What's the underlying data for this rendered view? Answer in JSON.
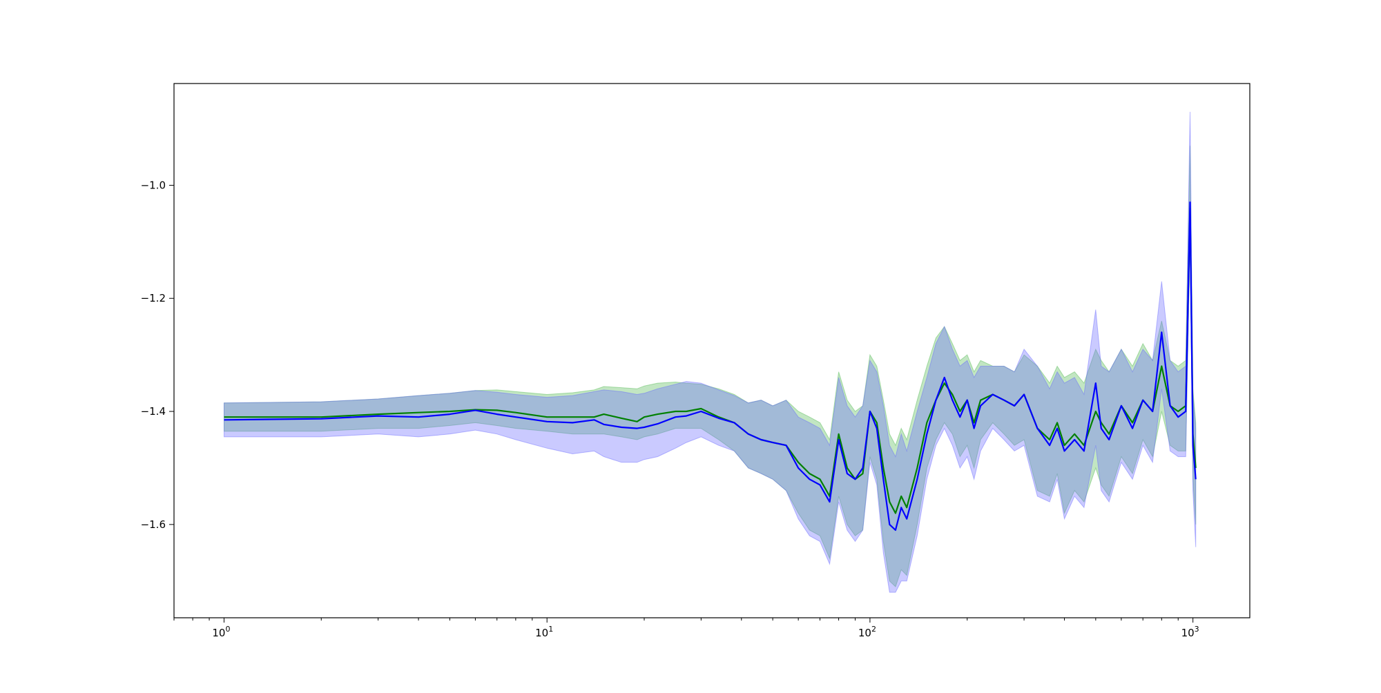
{
  "chart_data": {
    "type": "line",
    "title": "",
    "xlabel": "",
    "ylabel": "",
    "xscale": "log",
    "xlim": [
      0.7,
      1500
    ],
    "ylim": [
      -1.765,
      -0.82
    ],
    "grid": false,
    "legend": "none",
    "x_ticks": [
      {
        "value": 1,
        "base": "10",
        "exp": "0"
      },
      {
        "value": 10,
        "base": "10",
        "exp": "1"
      },
      {
        "value": 100,
        "base": "10",
        "exp": "2"
      },
      {
        "value": 1000,
        "base": "10",
        "exp": "3"
      }
    ],
    "y_ticks": [
      {
        "value": -1.0,
        "label": "−1.0"
      },
      {
        "value": -1.2,
        "label": "−1.2"
      },
      {
        "value": -1.4,
        "label": "−1.4"
      },
      {
        "value": -1.6,
        "label": "−1.6"
      }
    ],
    "series": [
      {
        "color": "#008000",
        "band_color": "#4fb84f",
        "x": [
          1,
          2,
          3,
          4,
          5,
          6,
          7,
          8,
          10,
          12,
          14,
          15,
          17,
          19,
          20,
          22,
          25,
          27,
          30,
          34,
          38,
          42,
          46,
          50,
          55,
          60,
          65,
          70,
          75,
          80,
          85,
          90,
          95,
          100,
          105,
          110,
          115,
          120,
          125,
          130,
          140,
          150,
          160,
          170,
          180,
          190,
          200,
          210,
          220,
          240,
          260,
          280,
          300,
          330,
          360,
          380,
          400,
          430,
          460,
          500,
          520,
          550,
          600,
          650,
          700,
          750,
          800,
          850,
          900,
          950,
          980,
          1000,
          1020
        ],
        "y": [
          -1.41,
          -1.41,
          -1.405,
          -1.402,
          -1.4,
          -1.397,
          -1.398,
          -1.402,
          -1.41,
          -1.41,
          -1.41,
          -1.405,
          -1.412,
          -1.418,
          -1.41,
          -1.405,
          -1.4,
          -1.4,
          -1.395,
          -1.41,
          -1.42,
          -1.44,
          -1.45,
          -1.455,
          -1.46,
          -1.49,
          -1.51,
          -1.52,
          -1.55,
          -1.44,
          -1.5,
          -1.52,
          -1.51,
          -1.4,
          -1.42,
          -1.5,
          -1.56,
          -1.58,
          -1.55,
          -1.57,
          -1.5,
          -1.42,
          -1.38,
          -1.35,
          -1.37,
          -1.4,
          -1.38,
          -1.42,
          -1.38,
          -1.37,
          -1.38,
          -1.39,
          -1.37,
          -1.43,
          -1.45,
          -1.42,
          -1.46,
          -1.44,
          -1.46,
          -1.4,
          -1.42,
          -1.44,
          -1.39,
          -1.42,
          -1.38,
          -1.4,
          -1.32,
          -1.39,
          -1.4,
          -1.39,
          -1.04,
          -1.44,
          -1.5
        ],
        "lower": [
          -1.435,
          -1.435,
          -1.43,
          -1.43,
          -1.425,
          -1.42,
          -1.425,
          -1.43,
          -1.435,
          -1.44,
          -1.44,
          -1.44,
          -1.445,
          -1.45,
          -1.445,
          -1.44,
          -1.43,
          -1.43,
          -1.43,
          -1.45,
          -1.47,
          -1.5,
          -1.51,
          -1.52,
          -1.54,
          -1.58,
          -1.61,
          -1.62,
          -1.66,
          -1.55,
          -1.6,
          -1.62,
          -1.61,
          -1.48,
          -1.52,
          -1.63,
          -1.7,
          -1.71,
          -1.68,
          -1.69,
          -1.6,
          -1.5,
          -1.45,
          -1.42,
          -1.44,
          -1.48,
          -1.46,
          -1.5,
          -1.45,
          -1.42,
          -1.44,
          -1.46,
          -1.45,
          -1.54,
          -1.55,
          -1.51,
          -1.58,
          -1.54,
          -1.56,
          -1.5,
          -1.53,
          -1.55,
          -1.48,
          -1.51,
          -1.45,
          -1.48,
          -1.4,
          -1.46,
          -1.47,
          -1.47,
          -1.1,
          -1.52,
          -1.6
        ],
        "upper": [
          -1.385,
          -1.383,
          -1.378,
          -1.372,
          -1.368,
          -1.363,
          -1.362,
          -1.365,
          -1.37,
          -1.367,
          -1.362,
          -1.356,
          -1.358,
          -1.36,
          -1.355,
          -1.35,
          -1.348,
          -1.35,
          -1.352,
          -1.36,
          -1.37,
          -1.385,
          -1.38,
          -1.39,
          -1.38,
          -1.4,
          -1.41,
          -1.42,
          -1.45,
          -1.33,
          -1.38,
          -1.4,
          -1.39,
          -1.3,
          -1.32,
          -1.38,
          -1.44,
          -1.46,
          -1.43,
          -1.45,
          -1.38,
          -1.32,
          -1.27,
          -1.25,
          -1.28,
          -1.31,
          -1.3,
          -1.33,
          -1.31,
          -1.32,
          -1.32,
          -1.33,
          -1.3,
          -1.32,
          -1.35,
          -1.32,
          -1.34,
          -1.33,
          -1.35,
          -1.29,
          -1.31,
          -1.33,
          -1.29,
          -1.32,
          -1.28,
          -1.31,
          -1.24,
          -1.31,
          -1.32,
          -1.31,
          -0.93,
          -1.36,
          -1.42
        ]
      },
      {
        "color": "#0000ff",
        "band_color": "#6666ff",
        "x": [
          1,
          2,
          3,
          4,
          5,
          6,
          7,
          8,
          10,
          12,
          14,
          15,
          17,
          19,
          20,
          22,
          25,
          27,
          30,
          34,
          38,
          42,
          46,
          50,
          55,
          60,
          65,
          70,
          75,
          80,
          85,
          90,
          95,
          100,
          105,
          110,
          115,
          120,
          125,
          130,
          140,
          150,
          160,
          170,
          180,
          190,
          200,
          210,
          220,
          240,
          260,
          280,
          300,
          330,
          360,
          380,
          400,
          430,
          460,
          500,
          520,
          550,
          600,
          650,
          700,
          750,
          800,
          850,
          900,
          950,
          980,
          1000,
          1020
        ],
        "y": [
          -1.415,
          -1.413,
          -1.408,
          -1.41,
          -1.405,
          -1.398,
          -1.405,
          -1.41,
          -1.418,
          -1.42,
          -1.415,
          -1.423,
          -1.428,
          -1.43,
          -1.428,
          -1.422,
          -1.41,
          -1.408,
          -1.4,
          -1.412,
          -1.42,
          -1.44,
          -1.45,
          -1.455,
          -1.46,
          -1.5,
          -1.52,
          -1.53,
          -1.56,
          -1.45,
          -1.51,
          -1.52,
          -1.5,
          -1.4,
          -1.43,
          -1.52,
          -1.6,
          -1.61,
          -1.57,
          -1.59,
          -1.52,
          -1.44,
          -1.38,
          -1.34,
          -1.38,
          -1.41,
          -1.38,
          -1.43,
          -1.39,
          -1.37,
          -1.38,
          -1.39,
          -1.37,
          -1.43,
          -1.46,
          -1.43,
          -1.47,
          -1.45,
          -1.47,
          -1.35,
          -1.43,
          -1.45,
          -1.39,
          -1.43,
          -1.38,
          -1.4,
          -1.26,
          -1.39,
          -1.41,
          -1.4,
          -1.03,
          -1.46,
          -1.52
        ],
        "lower": [
          -1.445,
          -1.445,
          -1.44,
          -1.445,
          -1.44,
          -1.433,
          -1.44,
          -1.45,
          -1.465,
          -1.475,
          -1.47,
          -1.48,
          -1.49,
          -1.49,
          -1.485,
          -1.48,
          -1.465,
          -1.455,
          -1.445,
          -1.46,
          -1.47,
          -1.5,
          -1.51,
          -1.52,
          -1.54,
          -1.59,
          -1.62,
          -1.63,
          -1.67,
          -1.56,
          -1.61,
          -1.63,
          -1.61,
          -1.49,
          -1.53,
          -1.65,
          -1.72,
          -1.72,
          -1.7,
          -1.7,
          -1.62,
          -1.52,
          -1.46,
          -1.43,
          -1.46,
          -1.5,
          -1.48,
          -1.52,
          -1.47,
          -1.43,
          -1.45,
          -1.47,
          -1.46,
          -1.55,
          -1.56,
          -1.52,
          -1.59,
          -1.55,
          -1.57,
          -1.46,
          -1.54,
          -1.56,
          -1.49,
          -1.52,
          -1.46,
          -1.49,
          -1.36,
          -1.47,
          -1.48,
          -1.48,
          -1.09,
          -1.54,
          -1.64
        ],
        "upper": [
          -1.385,
          -1.383,
          -1.378,
          -1.372,
          -1.368,
          -1.363,
          -1.366,
          -1.37,
          -1.375,
          -1.372,
          -1.365,
          -1.362,
          -1.365,
          -1.37,
          -1.368,
          -1.36,
          -1.352,
          -1.347,
          -1.35,
          -1.362,
          -1.372,
          -1.385,
          -1.38,
          -1.39,
          -1.38,
          -1.41,
          -1.42,
          -1.43,
          -1.46,
          -1.34,
          -1.39,
          -1.41,
          -1.39,
          -1.31,
          -1.33,
          -1.39,
          -1.46,
          -1.48,
          -1.44,
          -1.47,
          -1.4,
          -1.34,
          -1.28,
          -1.25,
          -1.29,
          -1.32,
          -1.31,
          -1.34,
          -1.32,
          -1.32,
          -1.32,
          -1.33,
          -1.29,
          -1.32,
          -1.36,
          -1.33,
          -1.35,
          -1.34,
          -1.37,
          -1.22,
          -1.32,
          -1.33,
          -1.29,
          -1.33,
          -1.29,
          -1.31,
          -1.17,
          -1.31,
          -1.33,
          -1.32,
          -0.87,
          -1.37,
          -1.43
        ]
      }
    ]
  }
}
